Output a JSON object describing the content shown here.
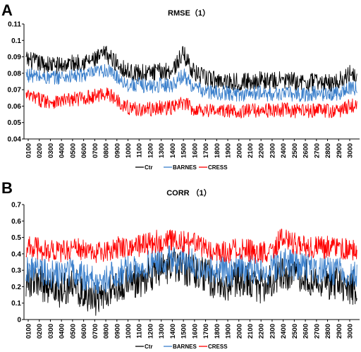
{
  "panels": [
    {
      "letter": "A",
      "title": "RMSE（1）",
      "yticks": [
        "0.04",
        "0.05",
        "0.06",
        "0.07",
        "0.08",
        "0.09",
        "0.1",
        "0.11"
      ],
      "xticks": [
        "0100",
        "0200",
        "0300",
        "0400",
        "0500",
        "0600",
        "0700",
        "0800",
        "0900",
        "1000",
        "1100",
        "1200",
        "1300",
        "1400",
        "1500",
        "1600",
        "1700",
        "1800",
        "1900",
        "2000",
        "2100",
        "2200",
        "2300",
        "2400",
        "2500",
        "2600",
        "2700",
        "2800",
        "2900",
        "3000"
      ],
      "legend": [
        "Ctr",
        "BARNES",
        "CRESS"
      ]
    },
    {
      "letter": "B",
      "title": "CORR （1）",
      "yticks": [
        "0",
        "0.1",
        "0.2",
        "0.3",
        "0.4",
        "0.5",
        "0.6",
        "0.7"
      ],
      "xticks": [
        "0100",
        "0200",
        "0300",
        "0400",
        "0500",
        "0600",
        "0700",
        "0800",
        "0900",
        "1000",
        "1100",
        "1200",
        "1300",
        "1400",
        "1500",
        "1600",
        "1700",
        "1800",
        "1900",
        "2000",
        "2100",
        "2200",
        "2300",
        "2400",
        "2500",
        "2600",
        "2700",
        "2800",
        "2900",
        "3000"
      ],
      "legend": [
        "Ctr",
        "BARNES",
        "CRESS"
      ]
    }
  ],
  "chart_data": [
    {
      "type": "line",
      "title": "RMSE（1）",
      "xlabel": "",
      "ylabel": "",
      "ylim": [
        0.04,
        0.11
      ],
      "grid": false,
      "legend_position": "bottom",
      "x_tick_labels": [
        "0100",
        "0200",
        "0300",
        "0400",
        "0500",
        "0600",
        "0700",
        "0800",
        "0900",
        "1000",
        "1100",
        "1200",
        "1300",
        "1400",
        "1500",
        "1600",
        "1700",
        "1800",
        "1900",
        "2000",
        "2100",
        "2200",
        "2300",
        "2400",
        "2500",
        "2600",
        "2700",
        "2800",
        "2900",
        "3000"
      ],
      "x": [
        100,
        200,
        300,
        400,
        500,
        600,
        700,
        800,
        900,
        1000,
        1100,
        1200,
        1300,
        1400,
        1500,
        1600,
        1700,
        1800,
        1900,
        2000,
        2100,
        2200,
        2300,
        2400,
        2500,
        2600,
        2700,
        2800,
        2900,
        3000
      ],
      "series": [
        {
          "name": "Ctr",
          "color": "#000000",
          "values": [
            0.088,
            0.086,
            0.085,
            0.085,
            0.086,
            0.087,
            0.088,
            0.092,
            0.086,
            0.081,
            0.08,
            0.08,
            0.081,
            0.082,
            0.092,
            0.08,
            0.077,
            0.076,
            0.075,
            0.075,
            0.075,
            0.076,
            0.075,
            0.076,
            0.075,
            0.074,
            0.075,
            0.074,
            0.075,
            0.08
          ]
        },
        {
          "name": "BARNES",
          "color": "#3a7fcb",
          "values": [
            0.079,
            0.078,
            0.077,
            0.078,
            0.078,
            0.079,
            0.08,
            0.082,
            0.078,
            0.073,
            0.073,
            0.072,
            0.073,
            0.073,
            0.079,
            0.071,
            0.069,
            0.068,
            0.068,
            0.067,
            0.068,
            0.068,
            0.067,
            0.068,
            0.067,
            0.067,
            0.068,
            0.067,
            0.068,
            0.071
          ]
        },
        {
          "name": "CRESS",
          "color": "#ff0000",
          "values": [
            0.066,
            0.064,
            0.063,
            0.063,
            0.064,
            0.065,
            0.066,
            0.068,
            0.064,
            0.059,
            0.058,
            0.058,
            0.059,
            0.059,
            0.062,
            0.058,
            0.058,
            0.057,
            0.057,
            0.057,
            0.057,
            0.058,
            0.057,
            0.058,
            0.057,
            0.057,
            0.058,
            0.057,
            0.057,
            0.06
          ]
        }
      ]
    },
    {
      "type": "line",
      "title": "CORR （1）",
      "xlabel": "",
      "ylabel": "",
      "ylim": [
        0,
        0.7
      ],
      "grid": false,
      "legend_position": "bottom",
      "x_tick_labels": [
        "0100",
        "0200",
        "0300",
        "0400",
        "0500",
        "0600",
        "0700",
        "0800",
        "0900",
        "1000",
        "1100",
        "1200",
        "1300",
        "1400",
        "1500",
        "1600",
        "1700",
        "1800",
        "1900",
        "2000",
        "2100",
        "2200",
        "2300",
        "2400",
        "2500",
        "2600",
        "2700",
        "2800",
        "2900",
        "3000"
      ],
      "x": [
        100,
        200,
        300,
        400,
        500,
        600,
        700,
        800,
        900,
        1000,
        1100,
        1200,
        1300,
        1400,
        1500,
        1600,
        1700,
        1800,
        1900,
        2000,
        2100,
        2200,
        2300,
        2400,
        2500,
        2600,
        2700,
        2800,
        2900,
        3000
      ],
      "series": [
        {
          "name": "Ctr",
          "color": "#000000",
          "values": [
            0.24,
            0.22,
            0.2,
            0.18,
            0.22,
            0.17,
            0.12,
            0.15,
            0.2,
            0.22,
            0.24,
            0.28,
            0.3,
            0.33,
            0.32,
            0.3,
            0.27,
            0.23,
            0.22,
            0.25,
            0.24,
            0.2,
            0.24,
            0.29,
            0.27,
            0.26,
            0.25,
            0.23,
            0.22,
            0.2
          ]
        },
        {
          "name": "BARNES",
          "color": "#3a7fcb",
          "values": [
            0.31,
            0.3,
            0.28,
            0.27,
            0.3,
            0.26,
            0.23,
            0.25,
            0.28,
            0.3,
            0.31,
            0.34,
            0.35,
            0.37,
            0.36,
            0.34,
            0.32,
            0.3,
            0.29,
            0.31,
            0.3,
            0.28,
            0.31,
            0.35,
            0.33,
            0.32,
            0.31,
            0.3,
            0.29,
            0.27
          ]
        },
        {
          "name": "CRESS",
          "color": "#ff0000",
          "values": [
            0.44,
            0.43,
            0.42,
            0.41,
            0.44,
            0.42,
            0.4,
            0.41,
            0.44,
            0.45,
            0.45,
            0.47,
            0.48,
            0.48,
            0.47,
            0.46,
            0.44,
            0.42,
            0.41,
            0.43,
            0.42,
            0.4,
            0.43,
            0.5,
            0.46,
            0.45,
            0.44,
            0.44,
            0.43,
            0.42
          ]
        }
      ]
    }
  ]
}
